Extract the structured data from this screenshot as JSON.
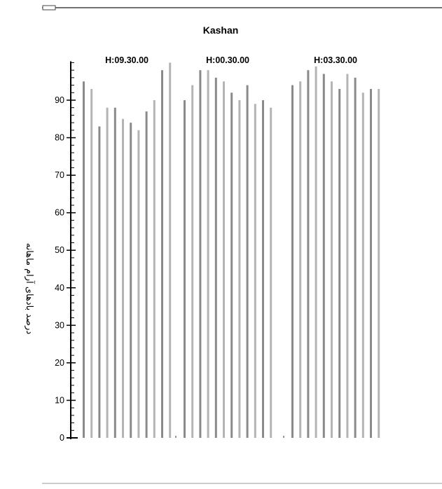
{
  "chart_data": {
    "type": "bar",
    "title": "Kashan",
    "ylabel": "درصد بادهای آرام ماهانه",
    "xlabel": "",
    "ylim": [
      0,
      100
    ],
    "yticks": [
      0,
      10,
      20,
      30,
      40,
      50,
      60,
      70,
      80,
      90
    ],
    "grid": false,
    "legend": "none",
    "bar_colors": [
      "#8a8a8a",
      "#b4b4b4"
    ],
    "groups": [
      {
        "label": "H:09.30.00",
        "values": [
          95,
          93,
          83,
          88,
          88,
          85,
          84,
          82,
          87,
          90,
          98,
          100
        ]
      },
      {
        "label": "H:00.30.00",
        "values": [
          90,
          94,
          98,
          98,
          96,
          95,
          92,
          90,
          94,
          89,
          90,
          88
        ]
      },
      {
        "label": "H:03.30.00",
        "values": [
          94,
          95,
          98,
          99,
          97,
          95,
          93,
          97,
          96,
          92,
          93,
          93
        ]
      }
    ]
  }
}
